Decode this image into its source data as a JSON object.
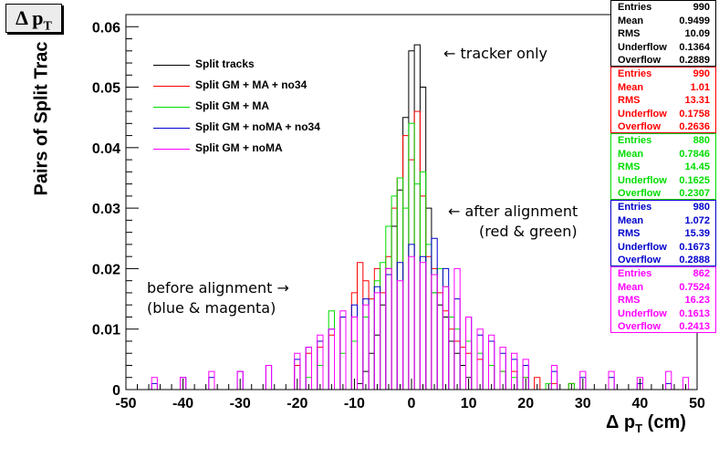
{
  "title": "Δ p_T",
  "chart_data": {
    "type": "line",
    "ylabel": "Pairs of Split Trac",
    "xlabel": "Δ p_T (cm)",
    "xlim": [
      -50,
      50
    ],
    "ylim": [
      0,
      0.062
    ],
    "x_ticks": [
      "-50",
      "-40",
      "-30",
      "-20",
      "-10",
      "0",
      "10",
      "20",
      "30",
      "40",
      "50"
    ],
    "y_ticks": [
      "0",
      "0.01",
      "0.02",
      "0.03",
      "0.04",
      "0.05",
      "0.06"
    ],
    "series": [
      {
        "name": "Split tracks",
        "color": "#000000",
        "x": [
          -9,
          -8,
          -7,
          -6,
          -5,
          -4,
          -3,
          -2,
          -1,
          0,
          1,
          2,
          3,
          4,
          5,
          6,
          7,
          8,
          9,
          10
        ],
        "values": [
          0.001,
          0.003,
          0.006,
          0.009,
          0.014,
          0.02,
          0.027,
          0.033,
          0.045,
          0.056,
          0.057,
          0.05,
          0.03,
          0.016,
          0.014,
          0.012,
          0.008,
          0.006,
          0.004,
          0.002
        ]
      },
      {
        "name": "Split GM + MA + no34",
        "color": "#ff0000",
        "x": [
          -20,
          -18,
          -16,
          -14,
          -12,
          -10,
          -9,
          -8,
          -7,
          -6,
          -5,
          -4,
          -3,
          -2,
          -1,
          0,
          1,
          2,
          3,
          4,
          5,
          6,
          7,
          8,
          9,
          10,
          12,
          14,
          16,
          18,
          20,
          22,
          25,
          28
        ],
        "values": [
          0.004,
          0.006,
          0.007,
          0.009,
          0.012,
          0.016,
          0.021,
          0.018,
          0.015,
          0.02,
          0.016,
          0.022,
          0.03,
          0.035,
          0.042,
          0.038,
          0.046,
          0.032,
          0.022,
          0.02,
          0.016,
          0.013,
          0.01,
          0.008,
          0.007,
          0.006,
          0.005,
          0.004,
          0.003,
          0.003,
          0.002,
          0.002,
          0.001,
          0.001
        ]
      },
      {
        "name": "Split GM + MA",
        "color": "#00dd00",
        "x": [
          -18,
          -16,
          -14,
          -12,
          -10,
          -8,
          -6,
          -5,
          -4,
          -3,
          -2,
          -1,
          0,
          1,
          2,
          3,
          4,
          5,
          6,
          7,
          8,
          10,
          12,
          14,
          16,
          18,
          20,
          24,
          28
        ],
        "values": [
          0.002,
          0.004,
          0.013,
          0.006,
          0.008,
          0.012,
          0.018,
          0.021,
          0.027,
          0.032,
          0.035,
          0.03,
          0.044,
          0.034,
          0.036,
          0.024,
          0.016,
          0.02,
          0.017,
          0.012,
          0.01,
          0.008,
          0.006,
          0.004,
          0.003,
          0.002,
          0.002,
          0.001,
          0.001
        ]
      },
      {
        "name": "Split GM + noMA + no34",
        "color": "#0000cc",
        "x": [
          -45,
          -40,
          -35,
          -30,
          -25,
          -20,
          -18,
          -16,
          -14,
          -12,
          -10,
          -8,
          -6,
          -4,
          -2,
          0,
          2,
          4,
          6,
          8,
          10,
          12,
          14,
          16,
          18,
          20,
          25,
          30,
          35,
          40,
          45
        ],
        "values": [
          0.001,
          0.002,
          0.002,
          0.003,
          0.004,
          0.005,
          0.007,
          0.008,
          0.01,
          0.012,
          0.014,
          0.015,
          0.017,
          0.019,
          0.021,
          0.024,
          0.022,
          0.025,
          0.02,
          0.015,
          0.012,
          0.009,
          0.008,
          0.006,
          0.005,
          0.004,
          0.003,
          0.002,
          0.002,
          0.001,
          0.001
        ]
      },
      {
        "name": "Split GM + noMA",
        "color": "#ff00ff",
        "x": [
          -45,
          -40,
          -35,
          -30,
          -25,
          -20,
          -18,
          -16,
          -14,
          -12,
          -10,
          -8,
          -6,
          -4,
          -2,
          0,
          2,
          4,
          6,
          8,
          10,
          12,
          14,
          16,
          18,
          20,
          25,
          30,
          35,
          40,
          45,
          48
        ],
        "values": [
          0.002,
          0.002,
          0.003,
          0.003,
          0.004,
          0.006,
          0.007,
          0.009,
          0.01,
          0.013,
          0.012,
          0.014,
          0.016,
          0.02,
          0.018,
          0.022,
          0.021,
          0.019,
          0.017,
          0.02,
          0.012,
          0.01,
          0.009,
          0.007,
          0.006,
          0.005,
          0.004,
          0.003,
          0.003,
          0.002,
          0.003,
          0.002
        ]
      }
    ],
    "annotations": {
      "tracker_only": "← tracker only",
      "after_alignment_1": "← after alignment",
      "after_alignment_2": "(red & green)",
      "before_alignment_1": "before alignment →",
      "before_alignment_2": "(blue & magenta)"
    },
    "stats": [
      {
        "color": "#000000",
        "rows": [
          [
            "Entries",
            "990"
          ],
          [
            "Mean",
            "0.9499"
          ],
          [
            "RMS",
            "10.09"
          ],
          [
            "Underflow",
            "0.1364"
          ],
          [
            "Overflow",
            "0.2889"
          ]
        ]
      },
      {
        "color": "#ff0000",
        "rows": [
          [
            "Entries",
            "990"
          ],
          [
            "Mean",
            "1.01"
          ],
          [
            "RMS",
            "13.31"
          ],
          [
            "Underflow",
            "0.1758"
          ],
          [
            "Overflow",
            "0.2636"
          ]
        ]
      },
      {
        "color": "#00dd00",
        "rows": [
          [
            "Entries",
            "880"
          ],
          [
            "Mean",
            "0.7846"
          ],
          [
            "RMS",
            "14.45"
          ],
          [
            "Underflow",
            "0.1625"
          ],
          [
            "Overflow",
            "0.2307"
          ]
        ]
      },
      {
        "color": "#0000cc",
        "rows": [
          [
            "Entries",
            "980"
          ],
          [
            "Mean",
            "1.072"
          ],
          [
            "RMS",
            "15.39"
          ],
          [
            "Underflow",
            "0.1673"
          ],
          [
            "Overflow",
            "0.2888"
          ]
        ]
      },
      {
        "color": "#ff00ff",
        "rows": [
          [
            "Entries",
            "862"
          ],
          [
            "Mean",
            "0.7524"
          ],
          [
            "RMS",
            "16.23"
          ],
          [
            "Underflow",
            "0.1613"
          ],
          [
            "Overflow",
            "0.2413"
          ]
        ]
      }
    ]
  }
}
